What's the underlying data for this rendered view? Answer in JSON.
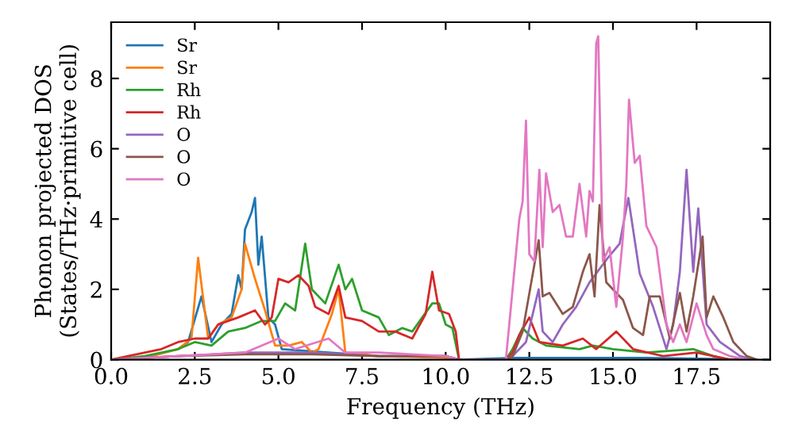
{
  "chart_data": {
    "type": "line",
    "xlabel": "Frequency (THz)",
    "ylabel": "Phonon projected DOS\n(States/THz·primitive cell)",
    "xlim": [
      0,
      19.7
    ],
    "ylim": [
      0,
      9.6
    ],
    "xticks": [
      {
        "value": 0,
        "label": "0.0"
      },
      {
        "value": 2.5,
        "label": "2.5"
      },
      {
        "value": 5,
        "label": "5.0"
      },
      {
        "value": 7.5,
        "label": "7.5"
      },
      {
        "value": 10,
        "label": "10.0"
      },
      {
        "value": 12.5,
        "label": "12.5"
      },
      {
        "value": 15,
        "label": "15.0"
      },
      {
        "value": 17.5,
        "label": "17.5"
      }
    ],
    "yticks": [
      0,
      2,
      4,
      6,
      8
    ],
    "grid": false,
    "legend": "top left",
    "marker": "none",
    "line_style": "solid",
    "series": [
      {
        "name": "Sr",
        "color": "#1f77b4",
        "x": [
          2,
          2.3,
          2.7,
          3.0,
          3.3,
          3.6,
          3.8,
          3.9,
          4.0,
          4.2,
          4.3,
          4.4,
          4.5,
          4.7,
          4.9,
          5.1,
          6.5,
          8,
          10,
          10.4,
          12,
          14,
          16,
          18,
          19
        ],
        "values": [
          0.3,
          0.5,
          1.8,
          0.5,
          1.0,
          1.3,
          2.4,
          2.0,
          3.7,
          4.2,
          4.6,
          2.7,
          3.5,
          1.2,
          1.0,
          0.3,
          0.2,
          0.1,
          0.1,
          0,
          0.05,
          0.05,
          0.05,
          0.02,
          0
        ]
      },
      {
        "name": "Sr",
        "color": "#ff7f0e",
        "x": [
          0,
          1,
          2,
          2.4,
          2.6,
          2.9,
          3.2,
          3.6,
          3.9,
          4.0,
          4.3,
          4.6,
          4.9,
          5.3,
          5.7,
          6.0,
          6.2,
          6.6,
          6.8,
          7.0,
          8,
          10,
          10.4
        ],
        "values": [
          0,
          0.05,
          0.3,
          0.6,
          2.9,
          0.6,
          1.0,
          1.2,
          2.0,
          3.3,
          2.3,
          1.4,
          0.4,
          0.4,
          0.5,
          0.2,
          0.3,
          1.3,
          2.0,
          0.2,
          0.1,
          0.05,
          0
        ]
      },
      {
        "name": "Rh",
        "color": "#2ca02c",
        "x": [
          0,
          1,
          2,
          2.5,
          3.0,
          3.5,
          4.0,
          4.5,
          4.9,
          5.2,
          5.5,
          5.8,
          6.0,
          6.4,
          6.8,
          7.0,
          7.2,
          7.5,
          8.0,
          8.3,
          8.7,
          9.0,
          9.3,
          9.6,
          9.8,
          10.0,
          10.2,
          10.4,
          11.8,
          12.0,
          12.3,
          12.6,
          13.0,
          14.0,
          14.4,
          15.0,
          16.0,
          17.4,
          18.0,
          18.5,
          19.0
        ],
        "values": [
          0,
          0.1,
          0.3,
          0.5,
          0.4,
          0.8,
          0.9,
          1.1,
          1.1,
          1.6,
          1.4,
          3.3,
          2.0,
          1.6,
          2.7,
          2.0,
          2.3,
          1.4,
          1.2,
          0.7,
          0.9,
          0.8,
          1.2,
          1.6,
          1.6,
          1.0,
          0.9,
          0,
          0,
          0.3,
          0.9,
          0.6,
          0.4,
          0.3,
          0.4,
          0.3,
          0.2,
          0.3,
          0.1,
          0,
          0
        ]
      },
      {
        "name": "Rh",
        "color": "#d62728",
        "x": [
          0,
          0.5,
          1.5,
          2.0,
          2.5,
          2.9,
          3.2,
          3.8,
          4.3,
          4.6,
          4.8,
          5.0,
          5.3,
          5.6,
          5.9,
          6.1,
          6.5,
          6.8,
          7.0,
          7.5,
          8.0,
          8.5,
          9.0,
          9.4,
          9.6,
          9.8,
          10.1,
          10.3,
          10.4,
          11.8,
          12.0,
          12.2,
          12.5,
          12.8,
          13.5,
          14.1,
          14.5,
          15.1,
          15.6,
          16.5,
          17.5,
          18.0,
          18.5,
          19.0
        ],
        "values": [
          0,
          0.1,
          0.3,
          0.5,
          0.6,
          0.6,
          1.0,
          1.2,
          1.4,
          1.0,
          1.2,
          2.3,
          2.2,
          2.4,
          2.1,
          1.5,
          1.3,
          2.1,
          1.2,
          1.1,
          0.8,
          0.8,
          0.6,
          1.3,
          2.5,
          1.4,
          1.3,
          0.8,
          0,
          0,
          0.2,
          0.7,
          1.2,
          0.5,
          0.4,
          0.6,
          0.3,
          0.8,
          0.3,
          0.1,
          0.2,
          0.1,
          0,
          0
        ]
      },
      {
        "name": "O",
        "color": "#9467bd",
        "x": [
          0,
          2,
          4,
          6,
          8,
          10,
          10.4,
          11.8,
          12.0,
          12.4,
          12.78,
          12.9,
          13.2,
          13.5,
          13.9,
          14.3,
          14.85,
          15.2,
          15.46,
          15.8,
          16.2,
          16.6,
          16.8,
          17.0,
          17.2,
          17.4,
          17.55,
          17.8,
          18.2,
          18.8,
          19.2
        ],
        "values": [
          0,
          0.1,
          0.2,
          0.2,
          0.1,
          0.1,
          0,
          0,
          0.1,
          0.5,
          2.0,
          0.8,
          0.5,
          1.0,
          1.5,
          2.2,
          2.9,
          3.3,
          4.6,
          2.45,
          1.5,
          0.3,
          1.0,
          2.5,
          5.4,
          2.5,
          4.3,
          1.0,
          0.5,
          0.1,
          0
        ]
      },
      {
        "name": "O",
        "color": "#8c564b",
        "x": [
          0,
          2,
          4,
          6,
          8,
          10,
          10.4,
          11.8,
          12.0,
          12.3,
          12.78,
          12.9,
          13.1,
          13.5,
          13.8,
          14.1,
          14.3,
          14.45,
          14.6,
          14.8,
          15.0,
          15.3,
          15.6,
          15.9,
          16.1,
          16.4,
          16.7,
          17.0,
          17.2,
          17.4,
          17.68,
          17.8,
          18.0,
          18.3,
          18.6,
          19.0,
          19.3
        ],
        "values": [
          0,
          0.1,
          0.15,
          0.15,
          0.1,
          0.1,
          0,
          0,
          0.1,
          0.8,
          3.4,
          1.8,
          1.9,
          1.3,
          1.5,
          2.5,
          3.0,
          1.8,
          4.4,
          2.2,
          2.0,
          1.7,
          0.9,
          0.7,
          1.8,
          1.8,
          0.6,
          1.9,
          0.8,
          1.8,
          3.5,
          1.2,
          1.8,
          1.2,
          0.5,
          0.1,
          0
        ]
      },
      {
        "name": "O",
        "color": "#e377c2",
        "x": [
          0,
          2,
          4,
          5.0,
          5.5,
          6.5,
          7.0,
          8,
          10,
          10.4,
          11.8,
          12.2,
          12.3,
          12.4,
          12.5,
          12.65,
          12.8,
          12.9,
          13.0,
          13.2,
          13.4,
          13.6,
          13.8,
          14.0,
          14.2,
          14.3,
          14.4,
          14.5,
          14.56,
          14.7,
          14.9,
          15.1,
          15.3,
          15.4,
          15.48,
          15.65,
          15.8,
          16.0,
          16.3,
          16.6,
          16.8,
          17.0,
          17.2,
          17.5,
          17.8,
          18.0,
          18.5,
          19.0
        ],
        "values": [
          0,
          0.1,
          0.2,
          0.6,
          0.3,
          0.6,
          0.2,
          0.2,
          0.1,
          0,
          0,
          4.0,
          4.5,
          6.8,
          3.0,
          2.8,
          5.4,
          3.2,
          5.3,
          4.2,
          4.4,
          3.5,
          3.5,
          5.0,
          3.5,
          4.8,
          4.5,
          9.0,
          9.2,
          2.8,
          3.2,
          1.5,
          3.5,
          5.0,
          7.4,
          5.6,
          5.8,
          3.8,
          3.2,
          1.0,
          0.5,
          1.0,
          0.5,
          1.6,
          0.7,
          0.3,
          0.1,
          0
        ]
      }
    ]
  }
}
